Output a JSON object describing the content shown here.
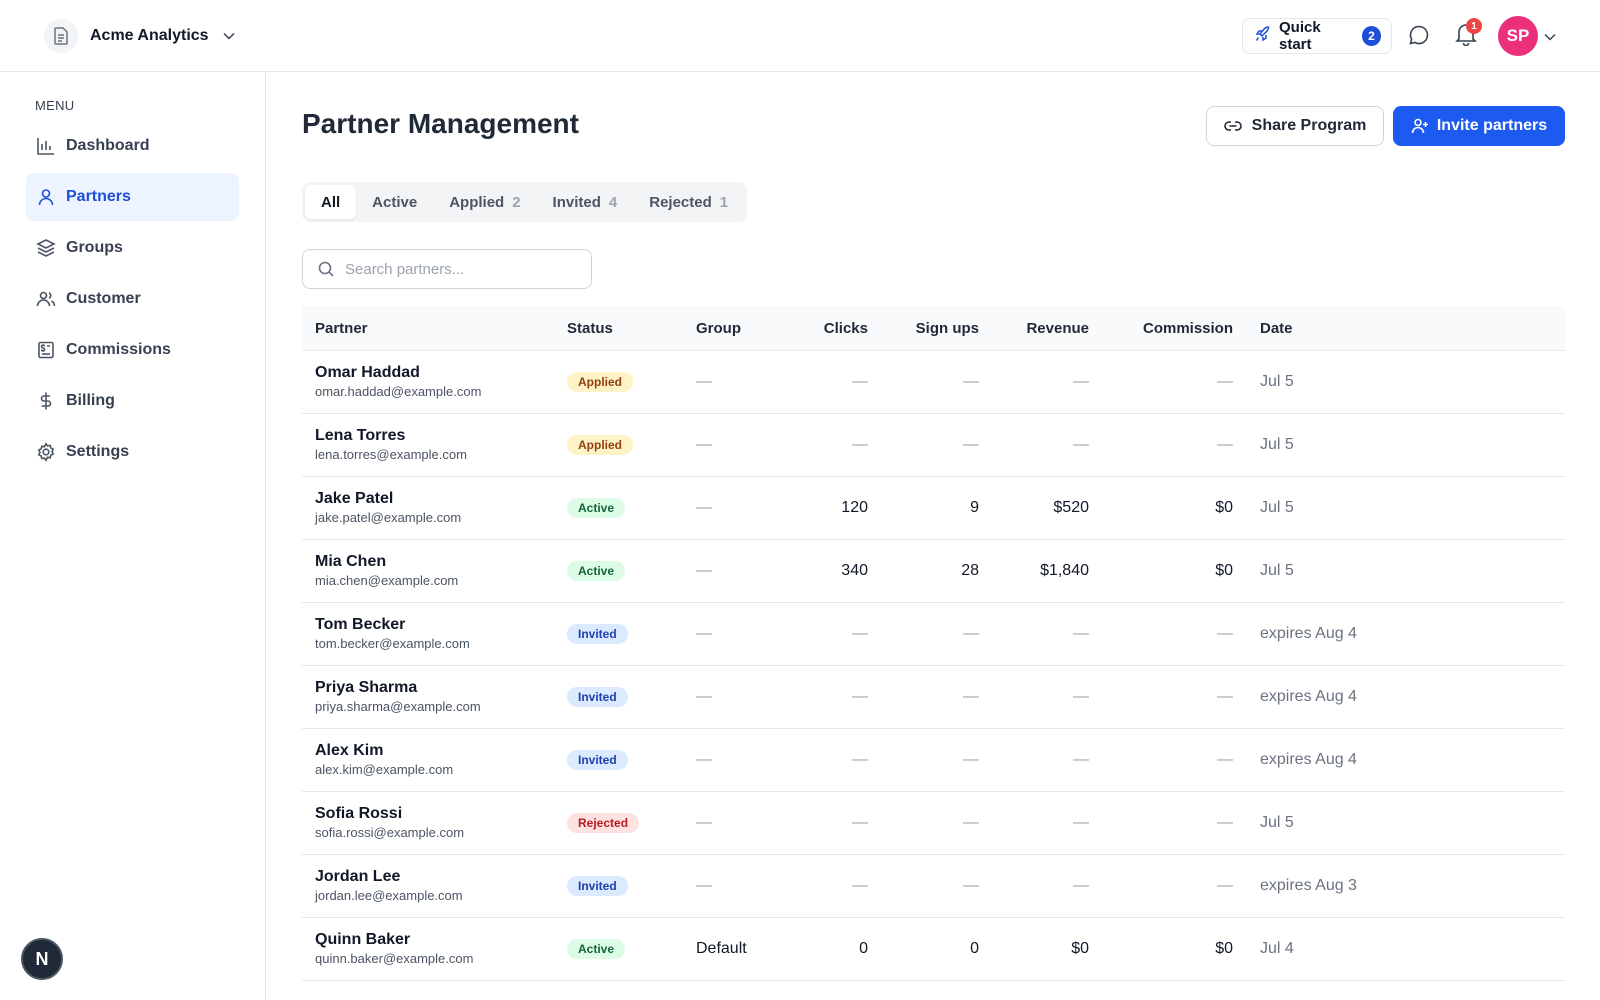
{
  "app": {
    "workspace_name": "Acme Analytics",
    "quick_start_label": "Quick start",
    "quick_start_count": "2",
    "notification_count": "1",
    "avatar_initials": "SP",
    "brand_color": "#1d5bf0",
    "avatar_color": "#ec2f7b"
  },
  "sidebar": {
    "menu_label": "MENU",
    "items": [
      {
        "label": "Dashboard",
        "icon": "bar-chart-icon",
        "active": false
      },
      {
        "label": "Partners",
        "icon": "user-icon",
        "active": true
      },
      {
        "label": "Groups",
        "icon": "layers-icon",
        "active": false
      },
      {
        "label": "Customer",
        "icon": "users-icon",
        "active": false
      },
      {
        "label": "Commissions",
        "icon": "commission-icon",
        "active": false
      },
      {
        "label": "Billing",
        "icon": "dollar-icon",
        "active": false
      },
      {
        "label": "Settings",
        "icon": "gear-icon",
        "active": false
      }
    ],
    "footer_logo": "N"
  },
  "page": {
    "title": "Partner Management",
    "share_label": "Share Program",
    "invite_label": "Invite partners",
    "tabs": [
      {
        "label": "All",
        "count": ""
      },
      {
        "label": "Active",
        "count": ""
      },
      {
        "label": "Applied",
        "count": "2"
      },
      {
        "label": "Invited",
        "count": "4"
      },
      {
        "label": "Rejected",
        "count": "1"
      }
    ],
    "search_placeholder": "Search partners..."
  },
  "table": {
    "columns": [
      "Partner",
      "Status",
      "Group",
      "Clicks",
      "Sign ups",
      "Revenue",
      "Commission",
      "Date"
    ],
    "rows": [
      {
        "name": "Omar Haddad",
        "email": "omar.haddad@example.com",
        "status": "Applied",
        "group": "—",
        "clicks": "—",
        "signups": "—",
        "revenue": "—",
        "commission": "—",
        "date": "Jul 5"
      },
      {
        "name": "Lena Torres",
        "email": "lena.torres@example.com",
        "status": "Applied",
        "group": "—",
        "clicks": "—",
        "signups": "—",
        "revenue": "—",
        "commission": "—",
        "date": "Jul 5"
      },
      {
        "name": "Jake Patel",
        "email": "jake.patel@example.com",
        "status": "Active",
        "group": "—",
        "clicks": "120",
        "signups": "9",
        "revenue": "$520",
        "commission": "$0",
        "date": "Jul 5"
      },
      {
        "name": "Mia Chen",
        "email": "mia.chen@example.com",
        "status": "Active",
        "group": "—",
        "clicks": "340",
        "signups": "28",
        "revenue": "$1,840",
        "commission": "$0",
        "date": "Jul 5"
      },
      {
        "name": "Tom Becker",
        "email": "tom.becker@example.com",
        "status": "Invited",
        "group": "—",
        "clicks": "—",
        "signups": "—",
        "revenue": "—",
        "commission": "—",
        "date": "expires Aug 4"
      },
      {
        "name": "Priya Sharma",
        "email": "priya.sharma@example.com",
        "status": "Invited",
        "group": "—",
        "clicks": "—",
        "signups": "—",
        "revenue": "—",
        "commission": "—",
        "date": "expires Aug 4"
      },
      {
        "name": "Alex Kim",
        "email": "alex.kim@example.com",
        "status": "Invited",
        "group": "—",
        "clicks": "—",
        "signups": "—",
        "revenue": "—",
        "commission": "—",
        "date": "expires Aug 4"
      },
      {
        "name": "Sofia Rossi",
        "email": "sofia.rossi@example.com",
        "status": "Rejected",
        "group": "—",
        "clicks": "—",
        "signups": "—",
        "revenue": "—",
        "commission": "—",
        "date": "Jul 5"
      },
      {
        "name": "Jordan Lee",
        "email": "jordan.lee@example.com",
        "status": "Invited",
        "group": "—",
        "clicks": "—",
        "signups": "—",
        "revenue": "—",
        "commission": "—",
        "date": "expires Aug 3"
      },
      {
        "name": "Quinn Baker",
        "email": "quinn.baker@example.com",
        "status": "Active",
        "group": "Default",
        "clicks": "0",
        "signups": "0",
        "revenue": "$0",
        "commission": "$0",
        "date": "Jul 4"
      }
    ]
  }
}
